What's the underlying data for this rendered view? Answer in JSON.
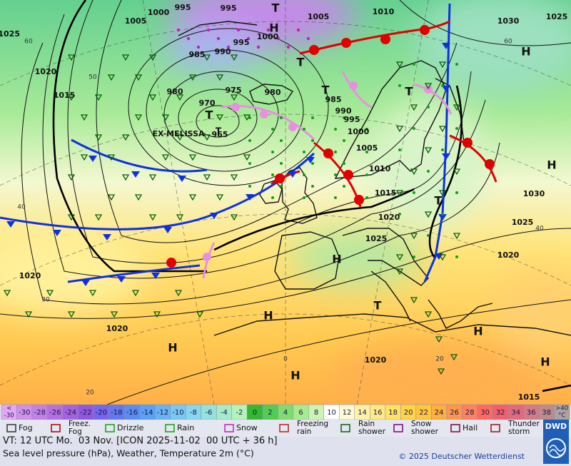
{
  "map": {
    "isobar_labels": [
      "1000",
      "995",
      "995",
      "1005",
      "1005",
      "1010",
      "1030",
      "1025",
      "1025",
      "1000",
      "995",
      "985",
      "990",
      "1020",
      "1015",
      "980",
      "975",
      "980",
      "970",
      "965",
      "985",
      "990",
      "995",
      "1000",
      "1005",
      "1010",
      "1015",
      "1020",
      "1025",
      "1030",
      "1025",
      "1020",
      "1020",
      "1020",
      "1020",
      "1015"
    ],
    "system_name": "EX-MELISSA",
    "highs": [
      "H",
      "H",
      "H",
      "H",
      "H",
      "H",
      "H",
      "H",
      "H"
    ],
    "lows": [
      "T",
      "T",
      "T",
      "T",
      "T",
      "T",
      "T",
      "T"
    ],
    "temperature_labels": [
      "60",
      "50",
      "40",
      "30",
      "20",
      "60",
      "40",
      "0",
      "20"
    ]
  },
  "temperature_scale": {
    "cells": [
      {
        "label": [
          "<",
          "-30"
        ],
        "color": "#e0a8f4"
      },
      {
        "label": [
          "-30"
        ],
        "color": "#d090ec"
      },
      {
        "label": [
          "-28"
        ],
        "color": "#c480e6"
      },
      {
        "label": [
          "-26"
        ],
        "color": "#b470e2"
      },
      {
        "label": [
          "-24"
        ],
        "color": "#a462e0"
      },
      {
        "label": [
          "-22"
        ],
        "color": "#9058e0"
      },
      {
        "label": [
          "-20"
        ],
        "color": "#7466ee"
      },
      {
        "label": [
          "-18"
        ],
        "color": "#6478f0"
      },
      {
        "label": [
          "-16"
        ],
        "color": "#5a8cf2"
      },
      {
        "label": [
          "-14"
        ],
        "color": "#5aa0f4"
      },
      {
        "label": [
          "-12"
        ],
        "color": "#66b4f6"
      },
      {
        "label": [
          "-10"
        ],
        "color": "#78c8f6"
      },
      {
        "label": [
          "-8"
        ],
        "color": "#86d8f0"
      },
      {
        "label": [
          "-6"
        ],
        "color": "#94e2e0"
      },
      {
        "label": [
          "-4"
        ],
        "color": "#a4eccc"
      },
      {
        "label": [
          "-2"
        ],
        "color": "#b6f2bc"
      },
      {
        "label": [
          "0"
        ],
        "color": "#34b834"
      },
      {
        "label": [
          "2"
        ],
        "color": "#54cc54"
      },
      {
        "label": [
          "4"
        ],
        "color": "#80dc70"
      },
      {
        "label": [
          "6"
        ],
        "color": "#a8ea90"
      },
      {
        "label": [
          "8"
        ],
        "color": "#ccf4b4"
      },
      {
        "label": [
          "10"
        ],
        "color": "#ffffff"
      },
      {
        "label": [
          "12"
        ],
        "color": "#fffbd4"
      },
      {
        "label": [
          "14"
        ],
        "color": "#fff2a8"
      },
      {
        "label": [
          "16"
        ],
        "color": "#ffea86"
      },
      {
        "label": [
          "18"
        ],
        "color": "#ffe266"
      },
      {
        "label": [
          "20"
        ],
        "color": "#ffd446"
      },
      {
        "label": [
          "22"
        ],
        "color": "#ffc63e"
      },
      {
        "label": [
          "24"
        ],
        "color": "#ffae40"
      },
      {
        "label": [
          "26"
        ],
        "color": "#ff9650"
      },
      {
        "label": [
          "28"
        ],
        "color": "#ff8260"
      },
      {
        "label": [
          "30"
        ],
        "color": "#ff6a62"
      },
      {
        "label": [
          "32"
        ],
        "color": "#f0606e"
      },
      {
        "label": [
          "34"
        ],
        "color": "#e26a80"
      },
      {
        "label": [
          "36"
        ],
        "color": "#d47a8a"
      },
      {
        "label": [
          "38"
        ],
        "color": "#c08a8c"
      },
      {
        "label": [
          ">40",
          "°C"
        ],
        "color": "#b0a2a2"
      }
    ]
  },
  "legend": [
    {
      "label": [
        "Fog"
      ]
    },
    {
      "label": [
        "Freez.",
        "Fog"
      ]
    },
    {
      "label": [
        "Drizzle"
      ]
    },
    {
      "label": [
        "Rain"
      ]
    },
    {
      "label": [
        "Snow"
      ]
    },
    {
      "label": [
        "Freezing",
        "rain"
      ]
    },
    {
      "label": [
        "Rain",
        "shower"
      ]
    },
    {
      "label": [
        "Snow",
        "shower"
      ]
    },
    {
      "label": [
        "Hail"
      ]
    },
    {
      "label": [
        "Thunder",
        "storm"
      ]
    }
  ],
  "footer": {
    "valid_time": "VT: 12 UTC Mo.  03 Nov. [ICON 2025-11-02  00 UTC + 36 h]",
    "description": "Sea level pressure (hPa), Weather, Temperature 2m (°C)",
    "copyright": "© 2025 Deutscher Wetterdienst",
    "logo": "DWD"
  }
}
